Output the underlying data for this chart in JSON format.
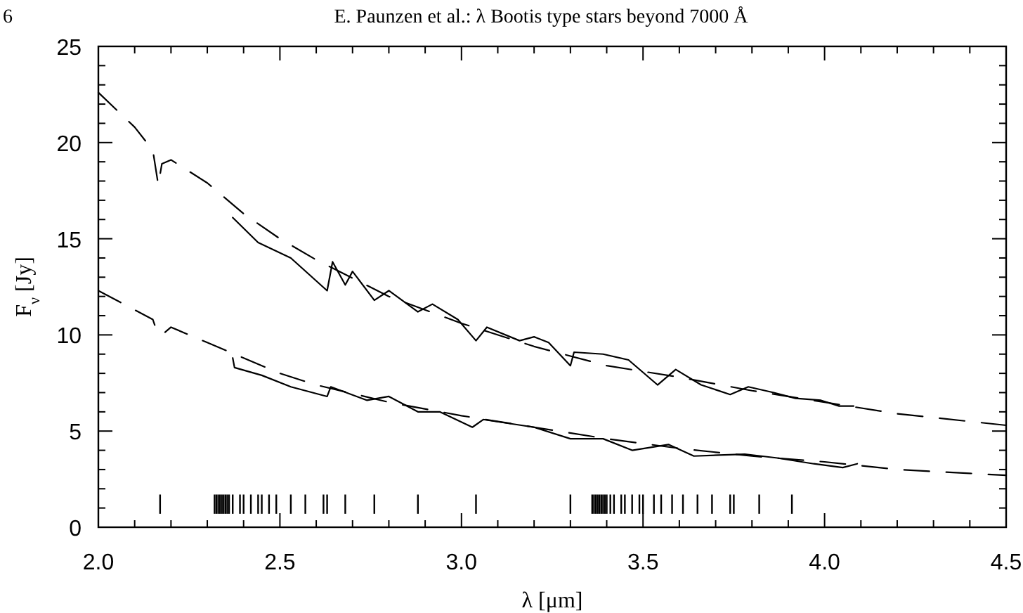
{
  "chart_data": {
    "type": "line",
    "annotations": [
      "6",
      "E. Paunzen et al.: λ Bootis type stars beyond 7000 Å"
    ],
    "xlabel": "λ [μm]",
    "ylabel": "F$_{ν}$ [Jy]",
    "xlim": [
      2.0,
      4.5
    ],
    "ylim": [
      0,
      25
    ],
    "xticks": [
      {
        "value": 2.0,
        "label": "2.0"
      },
      {
        "value": 2.1,
        "label": null
      },
      {
        "value": 2.2,
        "label": null
      },
      {
        "value": 2.3,
        "label": null
      },
      {
        "value": 2.4,
        "label": null
      },
      {
        "value": 2.5,
        "label": "2.5"
      },
      {
        "value": 2.6,
        "label": null
      },
      {
        "value": 2.7,
        "label": null
      },
      {
        "value": 2.8,
        "label": null
      },
      {
        "value": 2.9,
        "label": null
      },
      {
        "value": 3.0,
        "label": "3.0"
      },
      {
        "value": 3.1,
        "label": null
      },
      {
        "value": 3.2,
        "label": null
      },
      {
        "value": 3.3,
        "label": null
      },
      {
        "value": 3.4,
        "label": null
      },
      {
        "value": 3.5,
        "label": "3.5"
      },
      {
        "value": 3.6,
        "label": null
      },
      {
        "value": 3.7,
        "label": null
      },
      {
        "value": 3.8,
        "label": null
      },
      {
        "value": 3.9,
        "label": null
      },
      {
        "value": 4.0,
        "label": "4.0"
      },
      {
        "value": 4.1,
        "label": null
      },
      {
        "value": 4.2,
        "label": null
      },
      {
        "value": 4.3,
        "label": null
      },
      {
        "value": 4.4,
        "label": null
      },
      {
        "value": 4.5,
        "label": "4.5"
      }
    ],
    "yticks": [
      0,
      {
        "value": 1,
        "label": null
      },
      {
        "value": 2,
        "label": null
      },
      {
        "value": 3,
        "label": null
      },
      {
        "value": 4,
        "label": null
      },
      5,
      {
        "value": 6,
        "label": null
      },
      {
        "value": 7,
        "label": null
      },
      {
        "value": 8,
        "label": null
      },
      {
        "value": 9,
        "label": null
      },
      10,
      {
        "value": 11,
        "label": null
      },
      {
        "value": 12,
        "label": null
      },
      {
        "value": 13,
        "label": null
      },
      {
        "value": 14,
        "label": null
      },
      15,
      {
        "value": 16,
        "label": null
      },
      {
        "value": 17,
        "label": null
      },
      {
        "value": 18,
        "label": null
      },
      {
        "value": 19,
        "label": null
      },
      20,
      {
        "value": 21,
        "label": null
      },
      {
        "value": 22,
        "label": null
      },
      {
        "value": 23,
        "label": null
      },
      {
        "value": 24,
        "label": null
      },
      25
    ],
    "grid": false,
    "series": [
      {
        "color": "#000000",
        "line_style": "dashed",
        "x": [
          2.0,
          2.1,
          2.15,
          2.165,
          2.175,
          2.2,
          2.3,
          2.4,
          2.5,
          2.6,
          2.8,
          3.0,
          3.2,
          3.4,
          3.6,
          3.8,
          4.0,
          4.2,
          4.4,
          4.5
        ],
        "values": [
          22.6,
          20.8,
          19.6,
          17.8,
          18.9,
          19.1,
          17.9,
          16.3,
          15.0,
          13.9,
          12.0,
          10.6,
          9.4,
          8.4,
          7.8,
          7.1,
          6.5,
          5.9,
          5.5,
          5.3
        ]
      },
      {
        "color": "#000000",
        "line_style": "solid",
        "x": [
          2.37,
          2.44,
          2.53,
          2.63,
          2.645,
          2.68,
          2.7,
          2.76,
          2.8,
          2.88,
          2.92,
          2.99,
          3.04,
          3.07,
          3.16,
          3.2,
          3.24,
          3.3,
          3.31,
          3.39,
          3.46,
          3.54,
          3.59,
          3.66,
          3.74,
          3.79,
          3.86,
          3.92,
          3.99,
          4.04,
          4.08
        ],
        "values": [
          16.1,
          14.8,
          14.0,
          12.3,
          13.8,
          12.6,
          13.3,
          11.8,
          12.3,
          11.2,
          11.6,
          10.8,
          9.7,
          10.4,
          9.7,
          9.9,
          9.6,
          8.4,
          9.1,
          9.0,
          8.7,
          7.4,
          8.2,
          7.4,
          6.9,
          7.3,
          7.0,
          6.7,
          6.6,
          6.3,
          6.3
        ]
      },
      {
        "color": "#000000",
        "line_style": "dashed",
        "x": [
          2.0,
          2.1,
          2.15,
          2.161,
          2.175,
          2.2,
          2.3,
          2.4,
          2.5,
          2.6,
          2.8,
          3.0,
          3.2,
          3.4,
          3.6,
          3.8,
          4.0,
          4.2,
          4.4,
          4.5
        ],
        "values": [
          12.3,
          11.3,
          10.8,
          10.2,
          10.0,
          10.4,
          9.6,
          8.8,
          8.0,
          7.4,
          6.5,
          5.8,
          5.2,
          4.6,
          4.1,
          3.7,
          3.4,
          3.0,
          2.8,
          2.7
        ]
      },
      {
        "color": "#000000",
        "line_style": "solid",
        "x": [
          2.37,
          2.375,
          2.45,
          2.53,
          2.63,
          2.64,
          2.74,
          2.8,
          2.88,
          2.94,
          3.03,
          3.06,
          3.2,
          3.3,
          3.39,
          3.47,
          3.57,
          3.64,
          3.78,
          3.87,
          3.97,
          4.05,
          4.09
        ],
        "values": [
          8.8,
          8.3,
          7.9,
          7.3,
          6.8,
          7.3,
          6.6,
          6.8,
          6.0,
          6.0,
          5.2,
          5.6,
          5.2,
          4.6,
          4.6,
          4.0,
          4.3,
          3.7,
          3.8,
          3.6,
          3.3,
          3.1,
          3.3
        ]
      },
      {
        "type": "bar",
        "color": "#000000",
        "base": [
          0.7,
          0.7,
          0.7,
          0.7,
          0.7,
          0.7,
          0.7,
          0.7,
          0.7,
          0.7,
          0.7,
          0.7,
          0.7,
          0.7,
          0.7,
          0.7,
          0.7,
          0.7,
          0.7,
          0.7,
          0.7,
          0.7,
          0.7,
          0.7,
          0.7,
          0.7,
          0.7,
          0.7,
          0.7,
          0.7,
          0.7,
          0.7,
          0.7,
          0.7,
          0.7,
          0.7,
          0.7,
          0.7,
          0.7,
          0.7,
          0.7,
          0.7,
          0.7,
          0.7,
          0.7,
          0.7,
          0.7,
          0.7,
          0.7,
          0.7,
          0.7,
          0.7,
          0.7
        ],
        "x": [
          2.17,
          2.32,
          2.325,
          2.33,
          2.335,
          2.34,
          2.345,
          2.35,
          2.355,
          2.36,
          2.37,
          2.39,
          2.4,
          2.42,
          2.44,
          2.45,
          2.47,
          2.49,
          2.53,
          2.57,
          2.62,
          2.63,
          2.68,
          2.76,
          2.88,
          3.04,
          3.3,
          3.36,
          3.365,
          3.37,
          3.375,
          3.38,
          3.385,
          3.39,
          3.395,
          3.4,
          3.41,
          3.42,
          3.44,
          3.45,
          3.47,
          3.49,
          3.5,
          3.53,
          3.55,
          3.58,
          3.61,
          3.65,
          3.69,
          3.74,
          3.75,
          3.82,
          3.91
        ],
        "values": [
          1.0,
          1.0,
          1.0,
          1.0,
          1.0,
          1.0,
          1.0,
          1.0,
          1.0,
          1.0,
          1.0,
          1.0,
          1.0,
          1.0,
          1.0,
          1.0,
          1.0,
          1.0,
          1.0,
          1.0,
          1.0,
          1.0,
          1.0,
          1.0,
          1.0,
          1.0,
          1.0,
          1.0,
          1.0,
          1.0,
          1.0,
          1.0,
          1.0,
          1.0,
          1.0,
          1.0,
          1.0,
          1.0,
          1.0,
          1.0,
          1.0,
          1.0,
          1.0,
          1.0,
          1.0,
          1.0,
          1.0,
          1.0,
          1.0,
          1.0,
          1.0,
          1.0,
          1.0
        ]
      }
    ]
  }
}
